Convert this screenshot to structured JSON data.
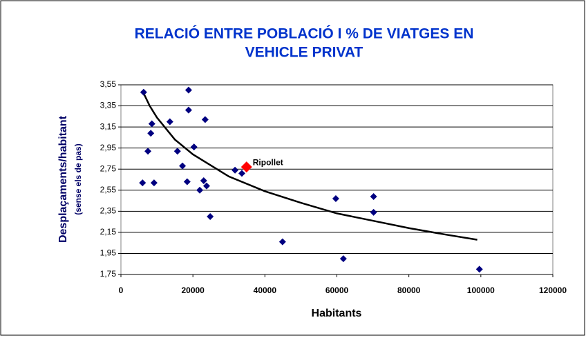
{
  "chart_data": {
    "type": "scatter",
    "title": [
      "RELACIÓ ENTRE POBLACIÓ I % DE VIATGES EN",
      "VEHICLE PRIVAT"
    ],
    "x_label": "Habitants",
    "y_label": "Desplaçaments/habitant",
    "y_sublabel": "(sense els de pas)",
    "xlim": [
      0,
      120000
    ],
    "xticks": [
      0,
      20000,
      40000,
      60000,
      80000,
      100000,
      120000
    ],
    "ylim": [
      1.75,
      3.55
    ],
    "yticks": [
      {
        "value": 1.75,
        "label": "1,75"
      },
      {
        "value": 1.95,
        "label": "1,95"
      },
      {
        "value": 2.15,
        "label": "2,15"
      },
      {
        "value": 2.35,
        "label": "2,35"
      },
      {
        "value": 2.55,
        "label": "2,55"
      },
      {
        "value": 2.75,
        "label": "2,75"
      },
      {
        "value": 2.95,
        "label": "2,95"
      },
      {
        "value": 3.15,
        "label": "3,15"
      },
      {
        "value": 3.35,
        "label": "3,35"
      },
      {
        "value": 3.55,
        "label": "3,55"
      }
    ],
    "grid": true,
    "points": {
      "color": "#000080",
      "x": [
        6300,
        18800,
        18800,
        13600,
        23400,
        8600,
        8300,
        7500,
        15700,
        20300,
        17100,
        6000,
        9200,
        18400,
        23000,
        23800,
        21900,
        24800,
        31700,
        33600,
        44900,
        59700,
        70200,
        70200,
        61800,
        99600
      ],
      "y": [
        3.48,
        3.5,
        3.31,
        3.2,
        3.22,
        3.18,
        3.09,
        2.92,
        2.92,
        2.96,
        2.78,
        2.62,
        2.62,
        2.63,
        2.64,
        2.59,
        2.55,
        2.3,
        2.74,
        2.71,
        2.06,
        2.47,
        2.49,
        2.34,
        1.9,
        1.8
      ]
    },
    "highlight": {
      "label": "Ripollet",
      "x": 34900,
      "y": 2.77,
      "color": "#ff0000"
    },
    "trendline": {
      "color": "#000000",
      "x": [
        6300,
        8000,
        10000,
        15000,
        20000,
        30000,
        40000,
        50000,
        60000,
        70000,
        80000,
        90000,
        99000
      ],
      "y": [
        3.47,
        3.35,
        3.24,
        3.03,
        2.89,
        2.68,
        2.54,
        2.43,
        2.33,
        2.26,
        2.19,
        2.13,
        2.08
      ]
    }
  }
}
